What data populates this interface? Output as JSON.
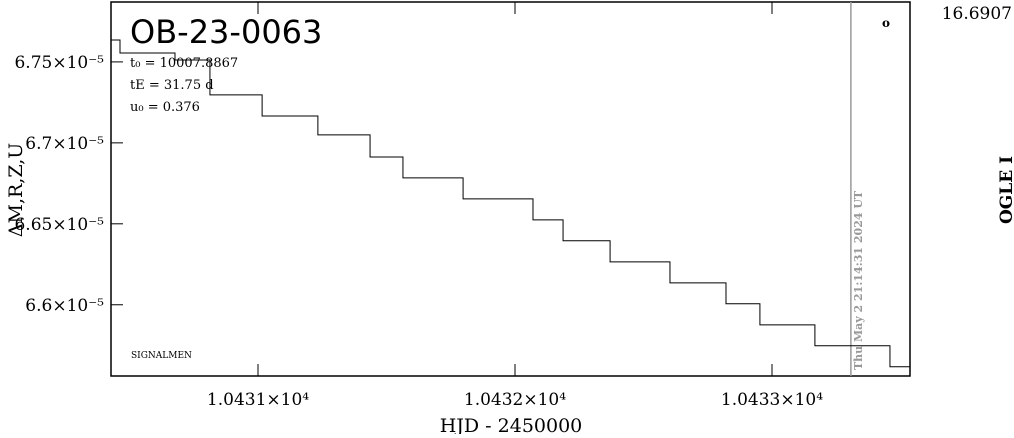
{
  "chart_data": {
    "type": "line",
    "title": "OB-23-0063",
    "x_label": "HJD - 2450000",
    "y_label": "ΔM,R,Z,U",
    "y2_label": "OGLE I",
    "annotations": [
      "t₀ = 10007.8867",
      "tE = 31.75 d",
      "u₀ = 0.376",
      "SIGNALMEN"
    ],
    "marker": "o",
    "vline": 10433.307,
    "vline_label": "Thu May  2 21:14:31 2024 UT",
    "vline_color": "#999999",
    "y2ticks": [
      {
        "value": 16.6907,
        "label": "16.6907"
      }
    ],
    "xlim": [
      10430.428,
      10433.537
    ],
    "ylim": [
      6.556e-05,
      6.787e-05
    ],
    "xticks": [
      {
        "value": 10431,
        "label": "1.0431×10⁴"
      },
      {
        "value": 10432,
        "label": "1.0432×10⁴"
      },
      {
        "value": 10433,
        "label": "1.0433×10⁴"
      }
    ],
    "yticks": [
      {
        "value": 6.6e-05,
        "label": "6.6×10⁻⁵"
      },
      {
        "value": 6.65e-05,
        "label": "6.65×10⁻⁵"
      },
      {
        "value": 6.7e-05,
        "label": "6.7×10⁻⁵"
      },
      {
        "value": 6.75e-05,
        "label": "6.75×10⁻⁵"
      }
    ],
    "series": [
      {
        "color": "#000000",
        "x": [
          10430.428,
          10430.463,
          10430.463,
          10430.677,
          10430.677,
          10430.813,
          10430.813,
          10431.016,
          10431.016,
          10431.233,
          10431.233,
          10431.436,
          10431.436,
          10431.564,
          10431.564,
          10431.798,
          10431.798,
          10432.07,
          10432.07,
          10432.187,
          10432.187,
          10432.37,
          10432.37,
          10432.603,
          10432.603,
          10432.821,
          10432.821,
          10432.953,
          10432.953,
          10433.167,
          10433.167,
          10433.459,
          10433.459,
          10433.537
        ],
        "values": [
          6.7635e-05,
          6.7635e-05,
          6.7555e-05,
          6.7555e-05,
          6.7512e-05,
          6.7512e-05,
          6.7296e-05,
          6.7296e-05,
          6.7166e-05,
          6.7166e-05,
          6.7049e-05,
          6.7049e-05,
          6.6913e-05,
          6.6913e-05,
          6.6784e-05,
          6.6784e-05,
          6.6654e-05,
          6.6654e-05,
          6.6524e-05,
          6.6524e-05,
          6.6395e-05,
          6.6395e-05,
          6.6265e-05,
          6.6265e-05,
          6.6135e-05,
          6.6135e-05,
          6.6006e-05,
          6.6006e-05,
          6.5876e-05,
          6.5876e-05,
          6.5747e-05,
          6.5747e-05,
          6.5617e-05,
          6.5617e-05
        ]
      }
    ]
  }
}
